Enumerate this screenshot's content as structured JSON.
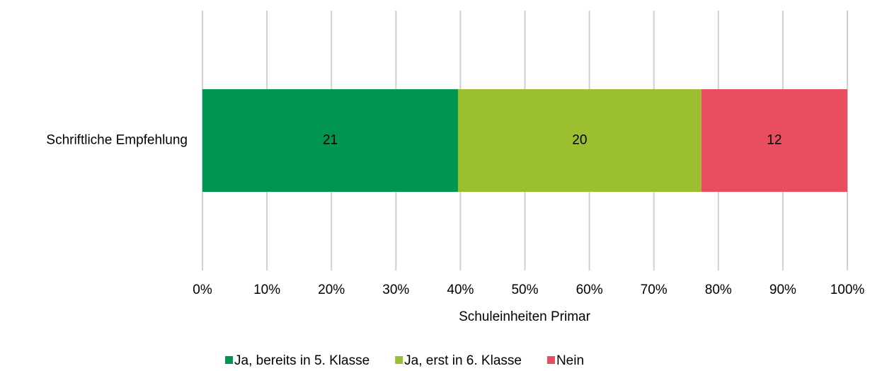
{
  "chart_data": {
    "type": "bar",
    "orientation": "horizontal",
    "stacked": "percent",
    "categories": [
      "Schriftliche Empfehlung"
    ],
    "series": [
      {
        "name": "Ja, bereits in 5. Klasse",
        "color": "#009650",
        "values": [
          21
        ]
      },
      {
        "name": "Ja, erst in 6. Klasse",
        "color": "#9bbf2e",
        "values": [
          20
        ]
      },
      {
        "name": "Nein",
        "color": "#e84e5f",
        "values": [
          12
        ]
      }
    ],
    "xlabel": "Schuleinheiten Primar",
    "xlim": [
      0,
      100
    ],
    "xticks": [
      {
        "value": 0,
        "label": "0%"
      },
      {
        "value": 10,
        "label": "10%"
      },
      {
        "value": 20,
        "label": "20%"
      },
      {
        "value": 30,
        "label": "30%"
      },
      {
        "value": 40,
        "label": "40%"
      },
      {
        "value": 50,
        "label": "50%"
      },
      {
        "value": 60,
        "label": "60%"
      },
      {
        "value": 70,
        "label": "70%"
      },
      {
        "value": 80,
        "label": "80%"
      },
      {
        "value": 90,
        "label": "90%"
      },
      {
        "value": 100,
        "label": "100%"
      }
    ],
    "grid": true,
    "legend": "bottom"
  }
}
